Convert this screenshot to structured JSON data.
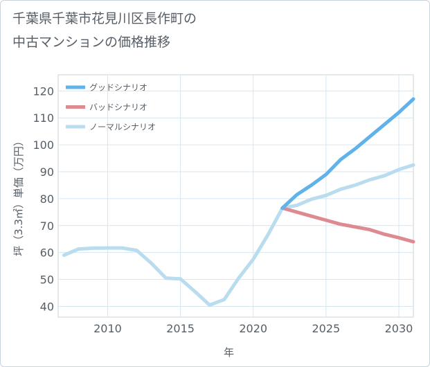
{
  "title_line1": "千葉県千葉市花見川区長作町の",
  "title_line2": "中古マンションの価格推移",
  "chart_data": {
    "type": "line",
    "title": "千葉県千葉市花見川区長作町の中古マンションの価格推移",
    "xlabel": "年",
    "ylabel": "坪（3.3㎡）単価（万円）",
    "xlim": [
      2006.6,
      2031
    ],
    "ylim": [
      36,
      126
    ],
    "x_ticks": [
      2010,
      2015,
      2020,
      2025,
      2030
    ],
    "y_ticks": [
      40,
      50,
      60,
      70,
      80,
      90,
      100,
      110,
      120
    ],
    "grid": true,
    "legend_position": "top-left",
    "series": [
      {
        "name": "グッドシナリオ",
        "color": "#5fb2ea",
        "x": [
          2022,
          2023,
          2024,
          2025,
          2026,
          2027,
          2028,
          2029,
          2030,
          2031
        ],
        "y": [
          76.5,
          81.5,
          85,
          89,
          94.5,
          98.5,
          103,
          107.5,
          112,
          117
        ]
      },
      {
        "name": "バッドシナリオ",
        "color": "#de8a91",
        "x": [
          2022,
          2023,
          2024,
          2025,
          2026,
          2027,
          2028,
          2029,
          2030,
          2031
        ],
        "y": [
          76.5,
          75,
          73.5,
          72,
          70.5,
          69.5,
          68.5,
          66.8,
          65.5,
          64
        ]
      },
      {
        "name": "ノーマルシナリオ",
        "color": "#b9dcef",
        "x": [
          2007,
          2008,
          2009,
          2010,
          2011,
          2012,
          2013,
          2014,
          2015,
          2016,
          2017,
          2018,
          2019,
          2020,
          2021,
          2022,
          2023,
          2024,
          2025,
          2026,
          2027,
          2028,
          2029,
          2030,
          2031
        ],
        "y": [
          59,
          61.3,
          61.6,
          61.7,
          61.7,
          60.8,
          56,
          50.5,
          50.2,
          45.5,
          40.5,
          42.5,
          50.5,
          57.5,
          66.5,
          76.5,
          77.5,
          79.8,
          81.2,
          83.5,
          85,
          87,
          88.5,
          90.8,
          92.5
        ]
      }
    ]
  }
}
